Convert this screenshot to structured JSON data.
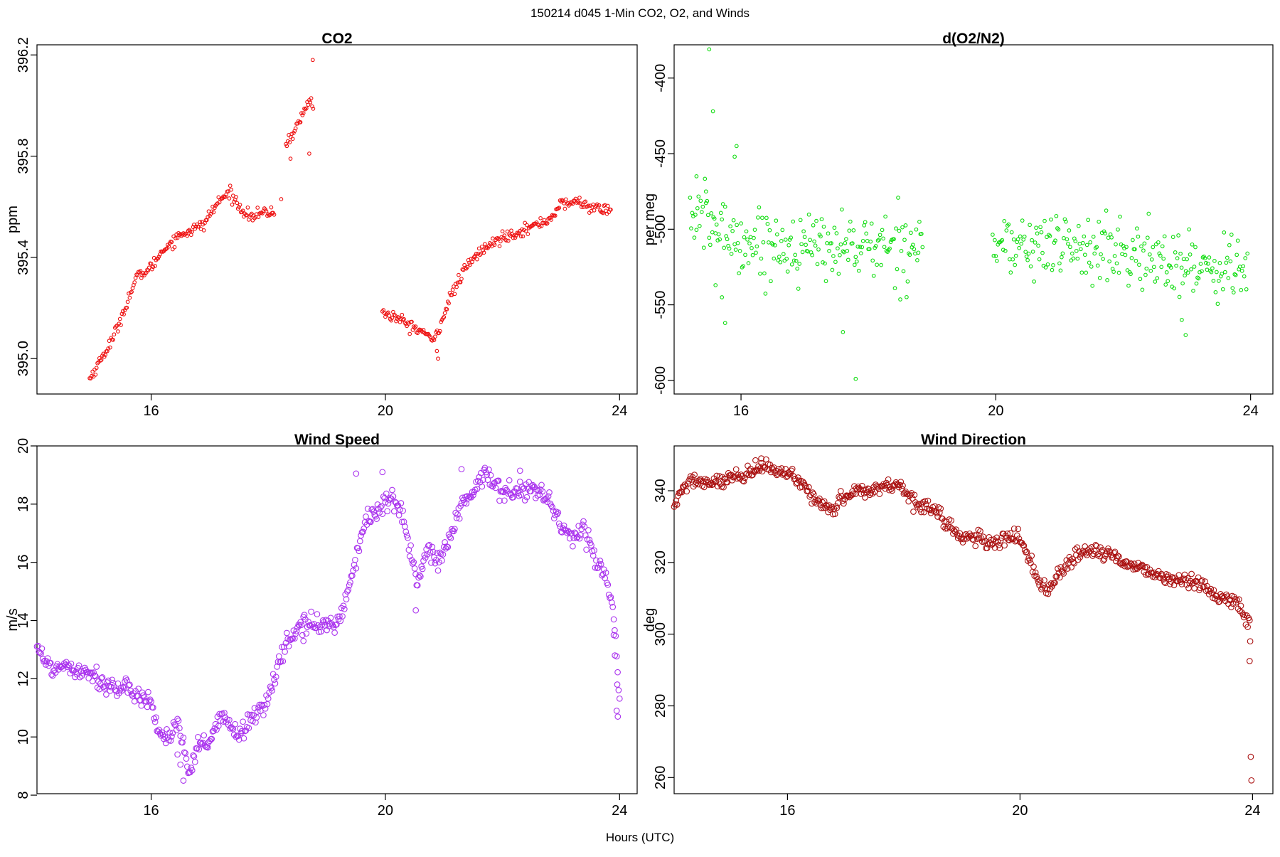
{
  "figure": {
    "title": "150214   d045   1-Min CO2, O2, and Winds",
    "xlabel": "Hours (UTC)"
  },
  "chart_data": [
    {
      "type": "scatter",
      "title": "CO2",
      "ylabel": "ppm",
      "xlim": [
        14.05,
        24.3
      ],
      "ylim": [
        394.86,
        396.24
      ],
      "xticks": [
        16,
        20,
        24
      ],
      "yticks": [
        395.0,
        395.4,
        395.8,
        396.2
      ],
      "ytick_labels": [
        "395.0",
        "395.4",
        "395.8",
        "396.2"
      ],
      "color": "#ee1111",
      "marker_radius": 2.3,
      "series": [
        {
          "segments": [
            {
              "xs": [
                14.95,
                15.15,
                15.35,
                15.55,
                15.75,
                16.0,
                16.2,
                16.5,
                16.9,
                17.0,
                17.15,
                17.35,
                17.5,
                17.7,
                18.0,
                18.1
              ],
              "ys": [
                394.92,
                395.0,
                395.08,
                395.2,
                395.32,
                395.36,
                395.43,
                395.49,
                395.53,
                395.57,
                395.62,
                395.66,
                395.6,
                395.56,
                395.58,
                395.57
              ]
            },
            {
              "xs": [
                18.3,
                18.45,
                18.6,
                18.72,
                18.78
              ],
              "ys": [
                395.85,
                395.9,
                395.97,
                396.03,
                395.99
              ]
            },
            {
              "xs": [
                19.95,
                20.2,
                20.5,
                20.7,
                20.8,
                20.95,
                21.1,
                21.35,
                21.6,
                22.0,
                22.5,
                22.8,
                23.0,
                23.3,
                23.6,
                23.85
              ],
              "ys": [
                395.18,
                395.16,
                395.12,
                395.1,
                395.06,
                395.14,
                395.24,
                395.35,
                395.42,
                395.48,
                395.52,
                395.55,
                395.61,
                395.62,
                395.59,
                395.59
              ]
            }
          ],
          "noise": 0.011,
          "scatter_points": [
            {
              "x": 18.76,
              "y": 396.18
            },
            {
              "x": 18.38,
              "y": 395.79
            },
            {
              "x": 18.7,
              "y": 395.81
            },
            {
              "x": 18.22,
              "y": 395.63
            },
            {
              "x": 20.9,
              "y": 395.0
            },
            {
              "x": 20.88,
              "y": 395.03
            }
          ]
        }
      ]
    },
    {
      "type": "scatter",
      "title": "d(O2/N2)",
      "ylabel": "per meg",
      "xlim": [
        14.95,
        24.35
      ],
      "ylim": [
        -609,
        -378
      ],
      "xticks": [
        16,
        20,
        24
      ],
      "yticks": [
        -600,
        -550,
        -500,
        -450,
        -400
      ],
      "ytick_labels": [
        "-600",
        "-550",
        "-500",
        "-450",
        "-400"
      ],
      "color": "#11dd11",
      "marker_radius": 2.3,
      "series": [
        {
          "segments": [
            {
              "xs": [
                15.2,
                15.6,
                16.0,
                16.5,
                17.0,
                17.5,
                18.0,
                18.5,
                18.85
              ],
              "ys": [
                -490,
                -498,
                -508,
                -510,
                -512,
                -510,
                -512,
                -510,
                -508
              ]
            },
            {
              "xs": [
                19.95,
                20.5,
                21.0,
                21.5,
                22.0,
                22.5,
                23.0,
                23.5,
                23.95
              ],
              "ys": [
                -510,
                -512,
                -510,
                -513,
                -517,
                -520,
                -523,
                -525,
                -524
              ]
            }
          ],
          "noise": 11,
          "scatter_points": [
            {
              "x": 15.5,
              "y": -381
            },
            {
              "x": 15.56,
              "y": -422
            },
            {
              "x": 15.93,
              "y": -445
            },
            {
              "x": 15.9,
              "y": -452
            },
            {
              "x": 17.8,
              "y": -599
            },
            {
              "x": 17.6,
              "y": -568
            },
            {
              "x": 22.98,
              "y": -570
            },
            {
              "x": 22.92,
              "y": -560
            },
            {
              "x": 15.3,
              "y": -465
            },
            {
              "x": 15.45,
              "y": -475
            },
            {
              "x": 15.7,
              "y": -545
            },
            {
              "x": 15.75,
              "y": -562
            },
            {
              "x": 15.6,
              "y": -537
            }
          ]
        }
      ]
    },
    {
      "type": "scatter",
      "title": "Wind Speed",
      "ylabel": "m/s",
      "xlim": [
        14.05,
        24.3
      ],
      "ylim": [
        8.05,
        20.0
      ],
      "xticks": [
        16,
        20,
        24
      ],
      "yticks": [
        8,
        10,
        12,
        14,
        16,
        18,
        20
      ],
      "ytick_labels": [
        "8",
        "10",
        "12",
        "14",
        "16",
        "18",
        "20"
      ],
      "color": "#aa33ee",
      "marker_radius": 3.8,
      "series": [
        {
          "segments": [
            {
              "xs": [
                14.05,
                14.15,
                14.3,
                14.5,
                14.8,
                15.0,
                15.2,
                15.5,
                15.8,
                16.0,
                16.1,
                16.3,
                16.45,
                16.55,
                16.65,
                16.8,
                17.0,
                17.2,
                17.5,
                17.7,
                18.0,
                18.3,
                18.6,
                18.9,
                19.2,
                19.45,
                19.65,
                19.85,
                20.1,
                20.3,
                20.45,
                20.55,
                20.7,
                20.9,
                21.1,
                21.3,
                21.5,
                21.7,
                21.9,
                22.2,
                22.5,
                22.8,
                23.0,
                23.2,
                23.4,
                23.6,
                23.75,
                23.85,
                23.92,
                24.0
              ],
              "ys": [
                13.3,
                12.7,
                12.3,
                12.5,
                12.3,
                12.2,
                11.8,
                11.6,
                11.5,
                11.2,
                10.3,
                9.9,
                10.6,
                9.6,
                8.6,
                9.7,
                9.8,
                10.7,
                10.1,
                10.5,
                11.4,
                13.2,
                13.9,
                13.8,
                14.0,
                15.6,
                17.5,
                17.7,
                18.2,
                17.6,
                16.2,
                15.2,
                16.4,
                16.0,
                16.8,
                18.0,
                18.3,
                19.1,
                18.6,
                18.4,
                18.6,
                18.1,
                17.3,
                16.8,
                17.2,
                16.0,
                15.6,
                14.8,
                14.0,
                11.2
              ]
            }
          ],
          "noise": 0.17,
          "scatter_points": [
            {
              "x": 19.5,
              "y": 19.05
            },
            {
              "x": 19.95,
              "y": 19.1
            },
            {
              "x": 21.3,
              "y": 19.2
            },
            {
              "x": 22.3,
              "y": 19.15
            },
            {
              "x": 16.45,
              "y": 9.4
            },
            {
              "x": 16.5,
              "y": 9.05
            },
            {
              "x": 16.55,
              "y": 8.5
            },
            {
              "x": 23.97,
              "y": 10.7
            },
            {
              "x": 23.95,
              "y": 10.9
            },
            {
              "x": 23.96,
              "y": 11.8
            },
            {
              "x": 23.92,
              "y": 12.8
            },
            {
              "x": 23.9,
              "y": 13.5
            },
            {
              "x": 20.52,
              "y": 14.35
            },
            {
              "x": 18.6,
              "y": 13.3
            }
          ]
        }
      ]
    },
    {
      "type": "scatter",
      "title": "Wind Direction",
      "ylabel": "deg",
      "xlim": [
        14.05,
        24.35
      ],
      "ylim": [
        255.5,
        352.5
      ],
      "xticks": [
        16,
        20,
        24
      ],
      "yticks": [
        260,
        280,
        300,
        320,
        340
      ],
      "ytick_labels": [
        "260",
        "280",
        "300",
        "320",
        "340"
      ],
      "color": "#aa1111",
      "marker_radius": 3.8,
      "series": [
        {
          "segments": [
            {
              "xs": [
                14.05,
                14.2,
                14.4,
                14.7,
                15.0,
                15.3,
                15.6,
                15.8,
                16.0,
                16.2,
                16.4,
                16.6,
                16.8,
                17.0,
                17.2,
                17.4,
                17.6,
                17.9,
                18.0,
                18.2,
                18.5,
                18.8,
                19.0,
                19.2,
                19.5,
                19.8,
                20.0,
                20.15,
                20.3,
                20.45,
                20.65,
                20.8,
                21.0,
                21.2,
                21.4,
                21.6,
                21.8,
                22.0,
                22.3,
                22.6,
                22.9,
                23.2,
                23.5,
                23.7,
                23.85,
                23.95
              ],
              "ys": [
                335,
                341,
                343,
                342,
                343,
                344,
                347,
                345,
                345,
                342,
                339,
                336,
                335,
                339,
                340,
                340,
                341,
                342,
                340,
                337,
                335,
                330,
                327,
                327,
                325,
                327,
                327,
                321,
                316,
                312,
                316,
                319,
                322,
                323,
                323,
                322,
                320,
                319,
                317,
                315,
                315,
                313,
                310,
                309,
                306,
                302
              ]
            }
          ],
          "noise": 1.0,
          "scatter_points": [
            {
              "x": 23.96,
              "y": 298
            },
            {
              "x": 23.95,
              "y": 292.5
            },
            {
              "x": 23.97,
              "y": 265.8
            },
            {
              "x": 23.98,
              "y": 259.2
            },
            {
              "x": 15.55,
              "y": 349
            },
            {
              "x": 15.45,
              "y": 348.5
            }
          ]
        }
      ]
    }
  ]
}
